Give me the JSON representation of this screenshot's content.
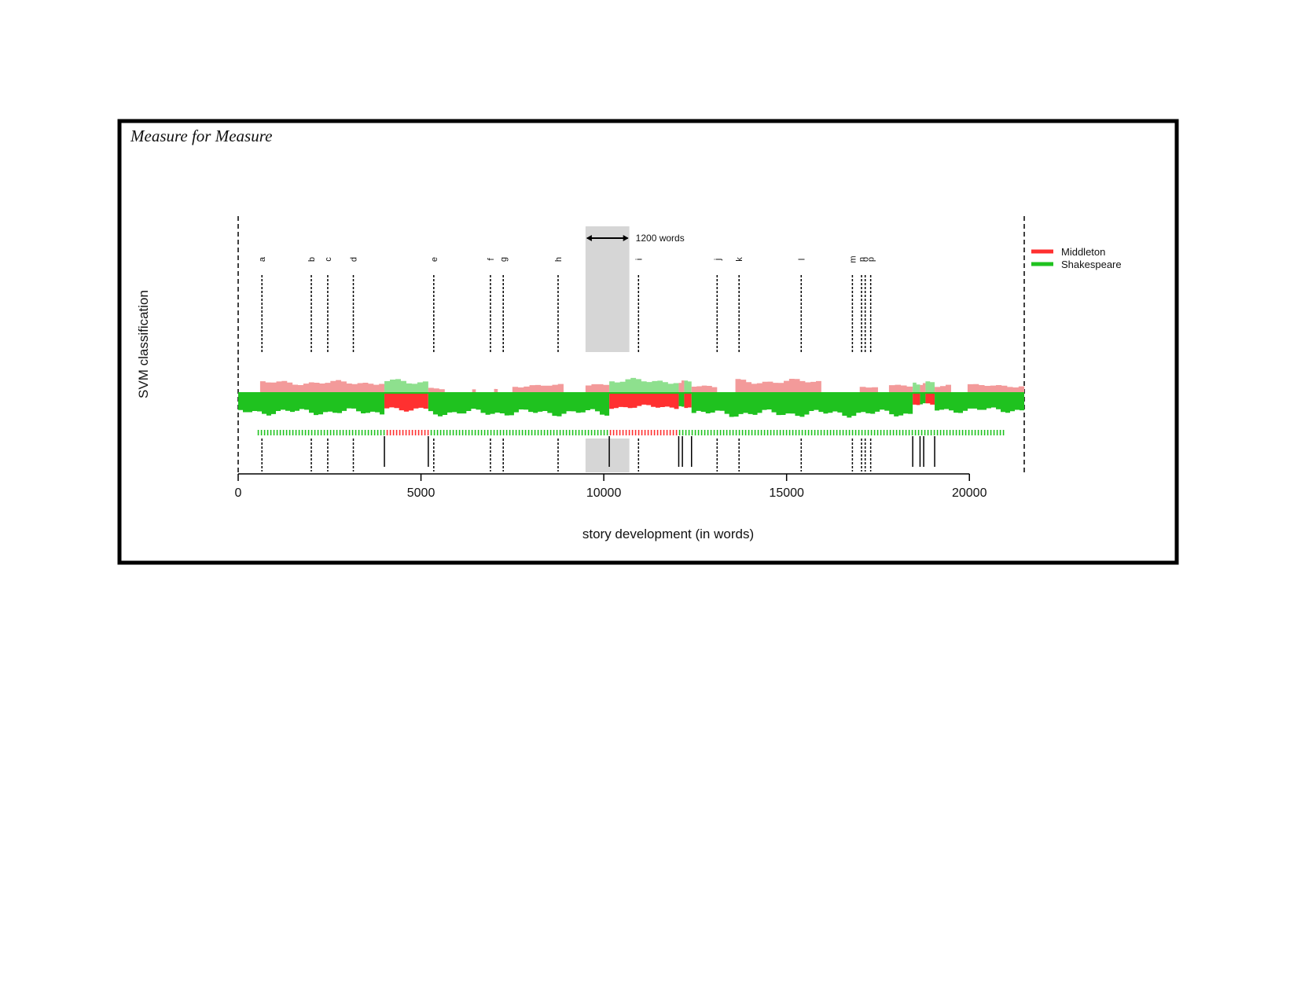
{
  "chart_data": {
    "type": "area",
    "title": "Measure for Measure",
    "xlabel": "story development (in words)",
    "ylabel": "SVM classification",
    "xlim": [
      0,
      21500
    ],
    "x_ticks": [
      0,
      5000,
      10000,
      15000,
      20000
    ],
    "x_tick_labels": [
      "0",
      "5000",
      "10000",
      "15000",
      "20000"
    ],
    "grid": false,
    "legend_position": "top-right",
    "colors": {
      "Middleton": "#ff3030",
      "Shakespeare": "#1fc21f",
      "Middleton_light": "#f39a9a",
      "Shakespeare_light": "#8ee08e",
      "window": "#d6d6d6"
    },
    "series": [
      {
        "name": "Middleton",
        "color": "#ff3030"
      },
      {
        "name": "Shakespeare",
        "color": "#1fc21f"
      }
    ],
    "window": {
      "x_start": 9500,
      "x_end": 10700,
      "label": "1200 words"
    },
    "scene_markers": [
      {
        "label": "a",
        "x": 650
      },
      {
        "label": "b",
        "x": 2000
      },
      {
        "label": "c",
        "x": 2450
      },
      {
        "label": "d",
        "x": 3150
      },
      {
        "label": "e",
        "x": 5350
      },
      {
        "label": "f",
        "x": 6900
      },
      {
        "label": "g",
        "x": 7250
      },
      {
        "label": "h",
        "x": 8750
      },
      {
        "label": "i",
        "x": 10950
      },
      {
        "label": "j",
        "x": 13100
      },
      {
        "label": "k",
        "x": 13700
      },
      {
        "label": "l",
        "x": 15400
      },
      {
        "label": "m",
        "x": 16800
      },
      {
        "label": "n",
        "x": 17050
      },
      {
        "label": "o",
        "x": 17150
      },
      {
        "label": "p",
        "x": 17300
      }
    ],
    "boundary_lines_x": [
      4000,
      5200,
      10150,
      12050,
      12150,
      12400,
      18450,
      18650,
      18750,
      19050
    ],
    "lower_band": [
      {
        "x_start": 0,
        "x_end": 4000,
        "class": "Shakespeare",
        "depth": 0.52
      },
      {
        "x_start": 4000,
        "x_end": 5200,
        "class": "Middleton",
        "depth": 0.4
      },
      {
        "x_start": 5200,
        "x_end": 10150,
        "class": "Shakespeare",
        "depth": 0.55
      },
      {
        "x_start": 10150,
        "x_end": 12050,
        "class": "Middleton",
        "depth": 0.33
      },
      {
        "x_start": 12050,
        "x_end": 12200,
        "class": "Shakespeare",
        "depth": 0.3
      },
      {
        "x_start": 12200,
        "x_end": 12400,
        "class": "Middleton",
        "depth": 0.3
      },
      {
        "x_start": 12400,
        "x_end": 18450,
        "class": "Shakespeare",
        "depth": 0.58
      },
      {
        "x_start": 18450,
        "x_end": 18650,
        "class": "Middleton",
        "depth": 0.25
      },
      {
        "x_start": 18650,
        "x_end": 18800,
        "class": "Shakespeare",
        "depth": 0.25
      },
      {
        "x_start": 18800,
        "x_end": 19050,
        "class": "Middleton",
        "depth": 0.25
      },
      {
        "x_start": 19050,
        "x_end": 21500,
        "class": "Shakespeare",
        "depth": 0.45
      }
    ],
    "upper_band": [
      {
        "x_start": 600,
        "x_end": 4000,
        "class": "Middleton",
        "height": 0.55
      },
      {
        "x_start": 4000,
        "x_end": 5200,
        "class": "Shakespeare",
        "height": 0.62
      },
      {
        "x_start": 5200,
        "x_end": 5650,
        "class": "Middleton",
        "height": 0.2
      },
      {
        "x_start": 6400,
        "x_end": 6500,
        "class": "Middleton",
        "height": 0.18
      },
      {
        "x_start": 7000,
        "x_end": 7100,
        "class": "Middleton",
        "height": 0.18
      },
      {
        "x_start": 7500,
        "x_end": 8900,
        "class": "Middleton",
        "height": 0.38
      },
      {
        "x_start": 9500,
        "x_end": 10150,
        "class": "Middleton",
        "height": 0.45
      },
      {
        "x_start": 10150,
        "x_end": 12050,
        "class": "Shakespeare",
        "height": 0.65
      },
      {
        "x_start": 12050,
        "x_end": 12200,
        "class": "Middleton",
        "height": 0.6
      },
      {
        "x_start": 12200,
        "x_end": 12400,
        "class": "Shakespeare",
        "height": 0.55
      },
      {
        "x_start": 12400,
        "x_end": 13100,
        "class": "Middleton",
        "height": 0.32
      },
      {
        "x_start": 13600,
        "x_end": 15950,
        "class": "Middleton",
        "height": 0.62
      },
      {
        "x_start": 17000,
        "x_end": 17500,
        "class": "Middleton",
        "height": 0.32
      },
      {
        "x_start": 17800,
        "x_end": 18450,
        "class": "Middleton",
        "height": 0.42
      },
      {
        "x_start": 18450,
        "x_end": 18650,
        "class": "Shakespeare",
        "height": 0.6
      },
      {
        "x_start": 18650,
        "x_end": 18800,
        "class": "Middleton",
        "height": 0.55
      },
      {
        "x_start": 18800,
        "x_end": 19050,
        "class": "Shakespeare",
        "height": 0.6
      },
      {
        "x_start": 19050,
        "x_end": 19500,
        "class": "Middleton",
        "height": 0.35
      },
      {
        "x_start": 19950,
        "x_end": 21500,
        "class": "Middleton",
        "height": 0.38
      }
    ],
    "tick_strip": {
      "x_start": 550,
      "x_end": 21000,
      "red_ranges": [
        [
          4000,
          5200
        ],
        [
          10150,
          12050
        ]
      ]
    }
  }
}
